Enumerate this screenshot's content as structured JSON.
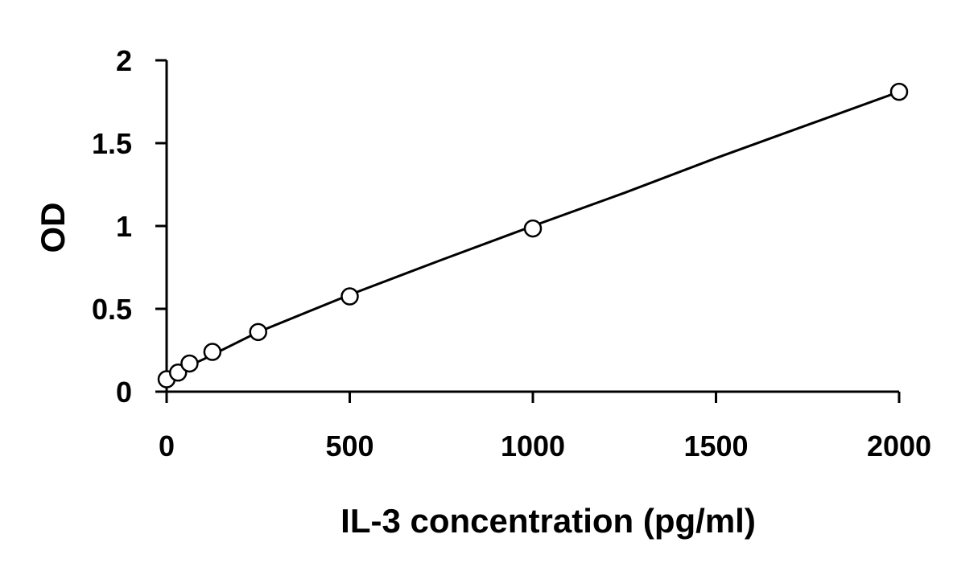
{
  "chart_data": {
    "type": "scatter",
    "xlabel": "IL-3 concentration (pg/ml)",
    "ylabel": "OD",
    "xlim": [
      0,
      2000
    ],
    "ylim": [
      0,
      2
    ],
    "x_ticks": [
      0,
      500,
      1000,
      1500,
      2000
    ],
    "x_tick_labels": [
      "0",
      "500",
      "1000",
      "1500",
      "2000"
    ],
    "y_ticks": [
      0,
      0.5,
      1,
      1.5,
      2
    ],
    "y_tick_labels": [
      "0",
      "0.5",
      "1",
      "1.5",
      "2"
    ],
    "grid": false,
    "legend": "none",
    "series": [
      {
        "marker": "open-circle",
        "points": [
          {
            "x": 0,
            "y": 0.075
          },
          {
            "x": 31.25,
            "y": 0.115
          },
          {
            "x": 62.5,
            "y": 0.17
          },
          {
            "x": 125,
            "y": 0.24
          },
          {
            "x": 250,
            "y": 0.36
          },
          {
            "x": 500,
            "y": 0.575
          },
          {
            "x": 1000,
            "y": 0.985
          },
          {
            "x": 2000,
            "y": 1.81
          }
        ]
      }
    ],
    "fit_curve": {
      "style": "solid-line",
      "x": [
        0,
        100,
        250,
        500,
        750,
        1000,
        1250,
        1500,
        1750,
        2000
      ],
      "y": [
        0.095,
        0.195,
        0.36,
        0.585,
        0.795,
        1.0,
        1.2,
        1.41,
        1.61,
        1.81
      ]
    },
    "colors": {
      "axis": "#000000",
      "marker_stroke": "#000000",
      "marker_fill": "#ffffff",
      "line": "#000000",
      "background": "#ffffff"
    }
  }
}
